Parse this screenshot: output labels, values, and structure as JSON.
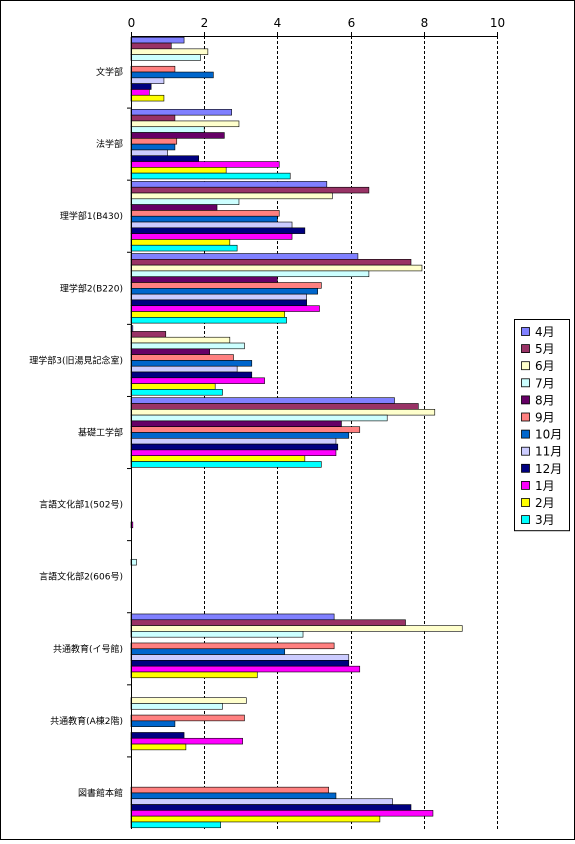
{
  "chart_data": {
    "type": "bar",
    "orientation": "horizontal",
    "title": "",
    "xlabel": "",
    "ylabel": "",
    "xlim": [
      0,
      10
    ],
    "x_ticks": [
      "0",
      "2",
      "4",
      "6",
      "8",
      "10"
    ],
    "grid": "vertical-dashed",
    "legend_position": "right",
    "categories": [
      "文学部",
      "法学部",
      "理学部1(B430)",
      "理学部2(B220)",
      "理学部3(旧湯見記念室)",
      "基礎工学部",
      "言語文化部1(502号)",
      "言語文化部2(606号)",
      "共通教育(イ号館)",
      "共通教育(A棟2階)",
      "図書館本館"
    ],
    "series": [
      {
        "name": "4月",
        "color": "#8080FF",
        "values": [
          1.45,
          2.75,
          5.35,
          6.2,
          0.05,
          7.2,
          0,
          0,
          5.55,
          0,
          0
        ]
      },
      {
        "name": "5月",
        "color": "#993366",
        "values": [
          1.1,
          1.2,
          6.5,
          7.65,
          0.95,
          7.85,
          0,
          0,
          7.5,
          0,
          0
        ]
      },
      {
        "name": "6月",
        "color": "#FFFFCC",
        "values": [
          2.1,
          2.95,
          5.5,
          7.95,
          2.7,
          8.3,
          0,
          0,
          9.05,
          3.15,
          0
        ]
      },
      {
        "name": "7月",
        "color": "#CCFFFF",
        "values": [
          1.9,
          2.0,
          2.95,
          6.5,
          3.1,
          7.0,
          0,
          0.15,
          4.7,
          2.5,
          0
        ]
      },
      {
        "name": "8月",
        "color": "#660066",
        "values": [
          0,
          2.55,
          2.35,
          4.0,
          2.15,
          5.75,
          0,
          0,
          0,
          0,
          0
        ]
      },
      {
        "name": "9月",
        "color": "#FF8080",
        "values": [
          1.2,
          1.25,
          4.05,
          5.2,
          2.8,
          6.25,
          0,
          0,
          5.55,
          3.1,
          5.4
        ]
      },
      {
        "name": "10月",
        "color": "#0066CC",
        "values": [
          2.25,
          1.2,
          4.0,
          5.1,
          3.3,
          5.95,
          0,
          0,
          4.2,
          1.2,
          5.6
        ]
      },
      {
        "name": "11月",
        "color": "#CCCCFF",
        "values": [
          0.9,
          1.0,
          4.4,
          4.8,
          2.9,
          5.6,
          0,
          0,
          5.95,
          0,
          7.15
        ]
      },
      {
        "name": "12月",
        "color": "#000080",
        "values": [
          0.55,
          1.85,
          4.75,
          4.8,
          3.3,
          5.65,
          0,
          0,
          5.95,
          1.45,
          7.65
        ]
      },
      {
        "name": "1月",
        "color": "#FF00FF",
        "values": [
          0.5,
          4.05,
          4.4,
          5.15,
          3.65,
          5.6,
          0.05,
          0,
          6.25,
          3.05,
          8.25
        ]
      },
      {
        "name": "2月",
        "color": "#FFFF00",
        "values": [
          0.9,
          2.6,
          2.7,
          4.2,
          2.3,
          4.75,
          0,
          0,
          3.45,
          1.5,
          6.8
        ]
      },
      {
        "name": "3月",
        "color": "#00FFFF",
        "values": [
          0,
          4.35,
          2.9,
          4.25,
          2.5,
          5.2,
          0,
          0,
          0,
          0,
          2.45
        ]
      }
    ]
  }
}
